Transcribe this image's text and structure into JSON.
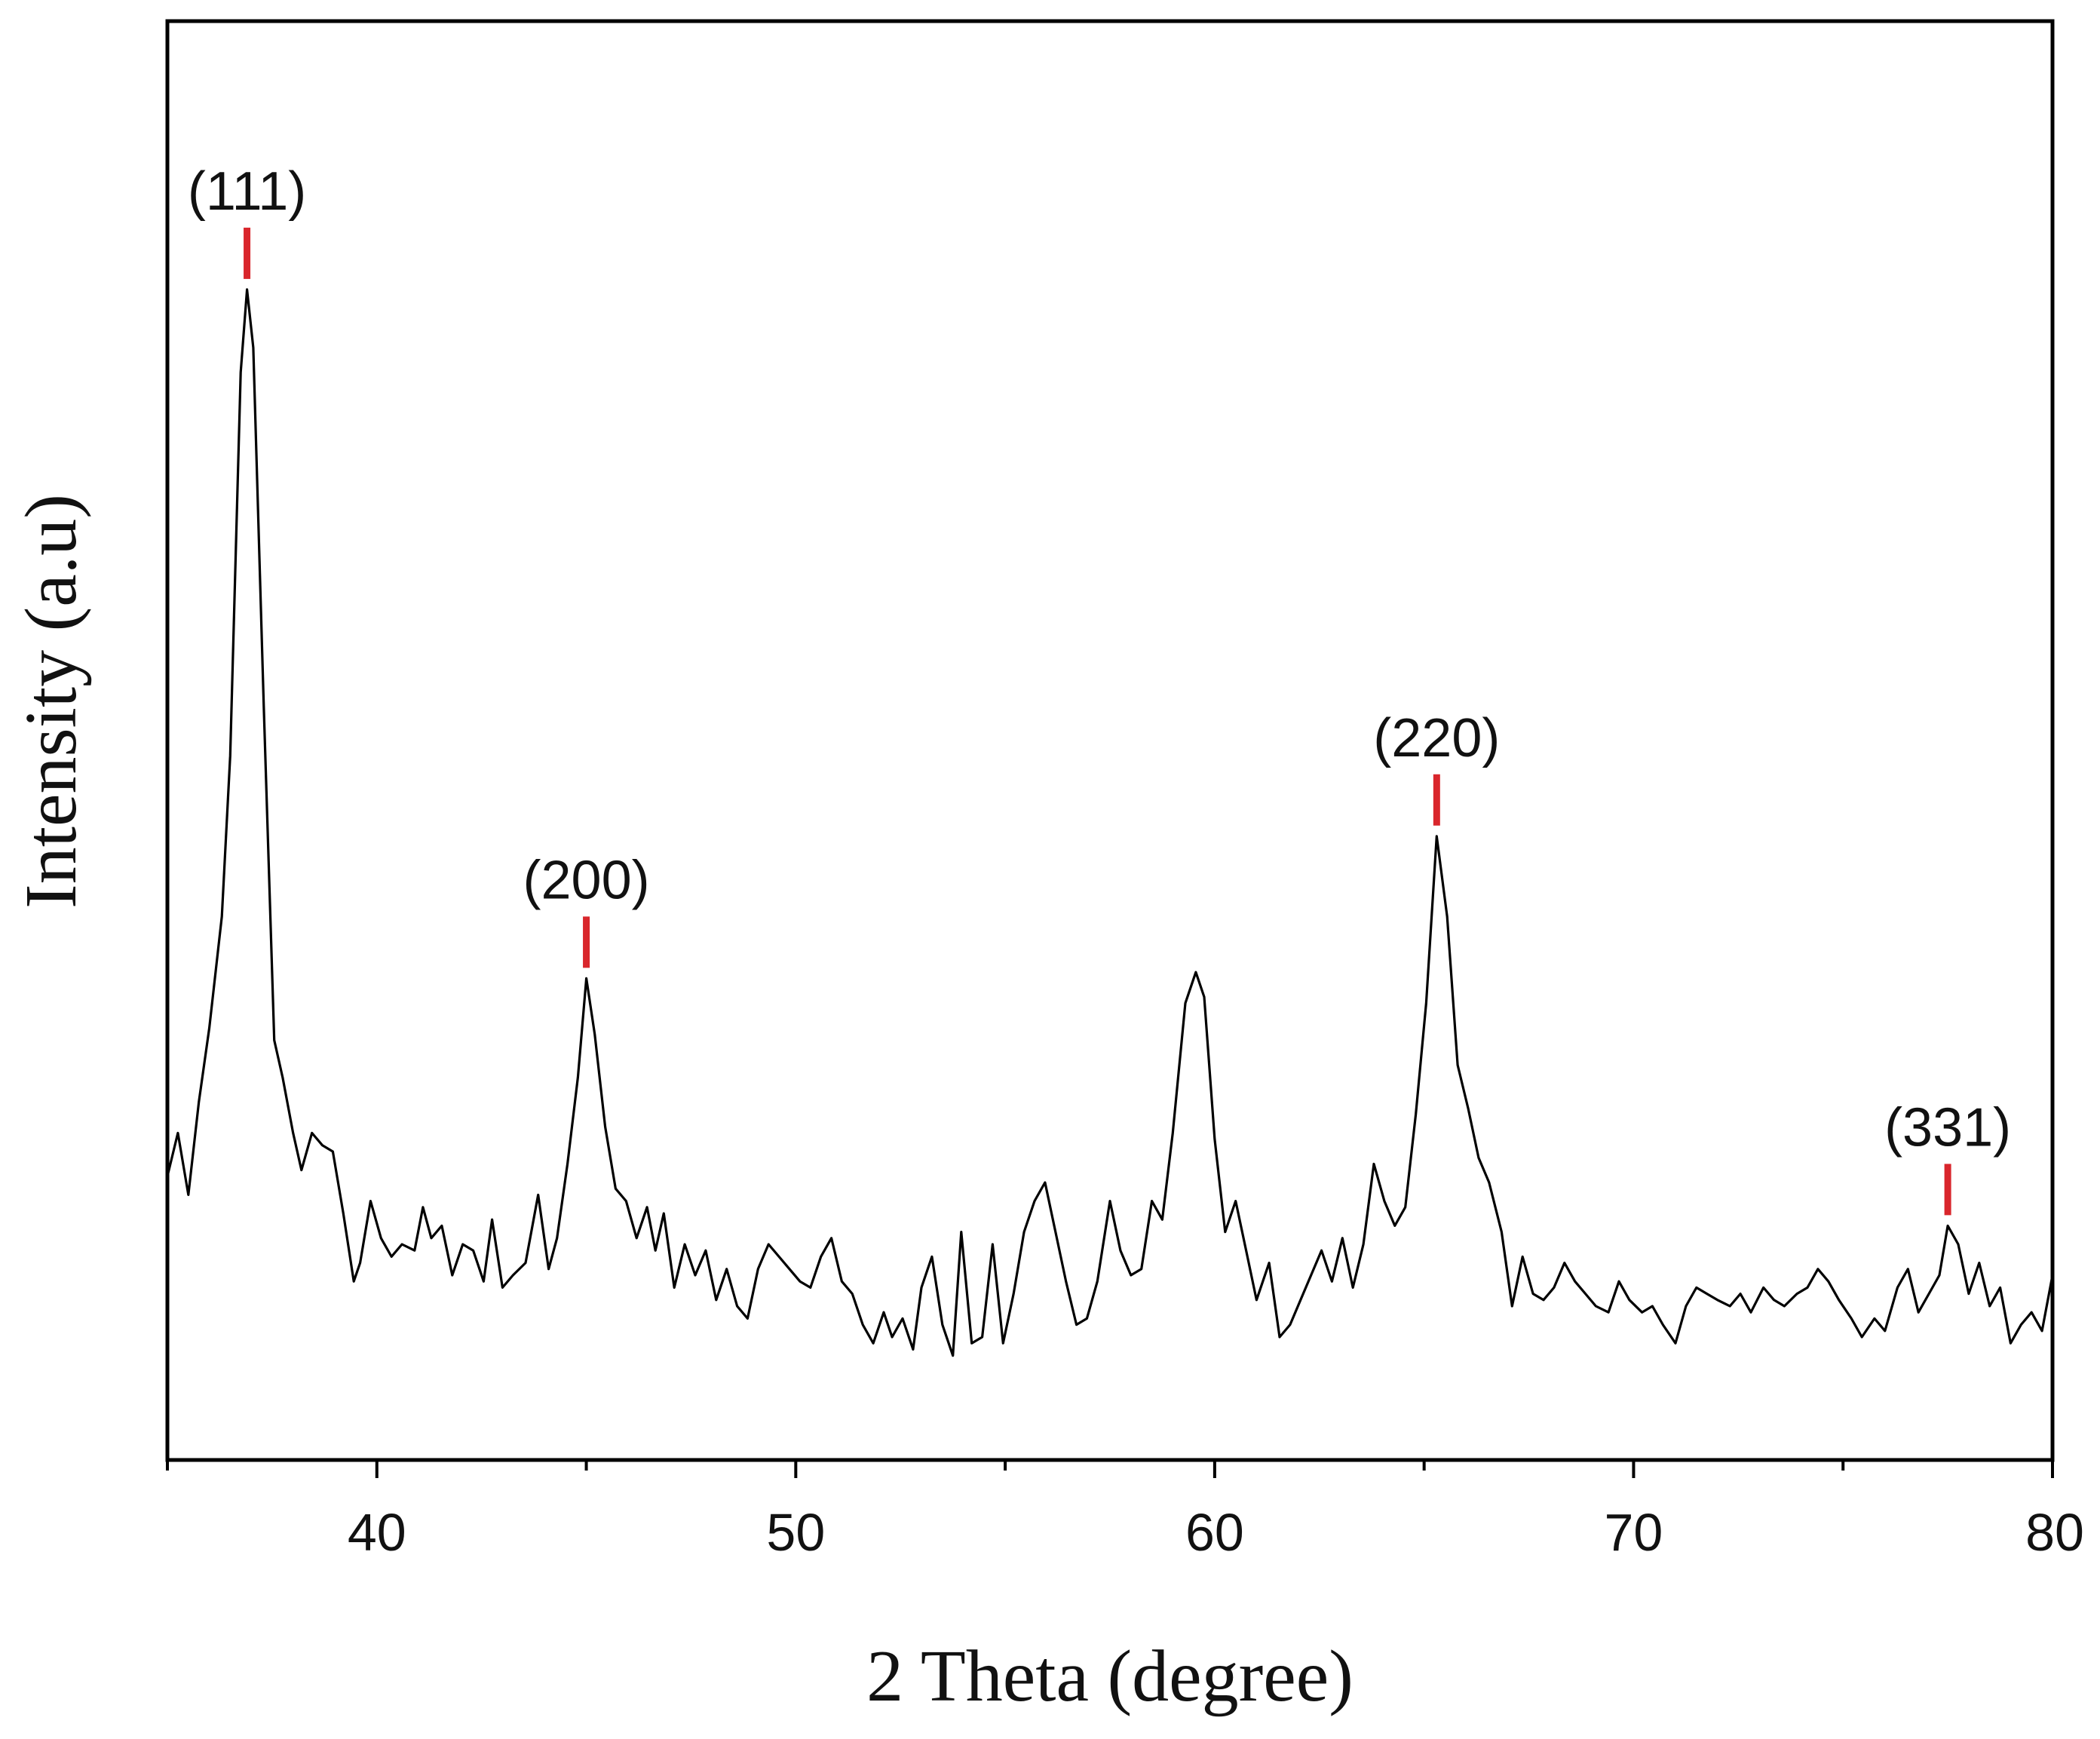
{
  "chart_data": {
    "type": "line",
    "title": "",
    "xlabel": "2 Theta (degree)",
    "ylabel": "Intensity (a.u)",
    "xlim": [
      35,
      80
    ],
    "ylim": [
      0,
      1000
    ],
    "x_ticks": [
      40,
      50,
      60,
      70,
      80
    ],
    "y_ticks": [],
    "grid": false,
    "legend": "none",
    "line_color": "#000000",
    "marker_color": "#d9262c",
    "peak_labels": [
      {
        "label": "(111)",
        "x": 36.9,
        "y": 897
      },
      {
        "label": "(200)",
        "x": 45.0,
        "y": 340
      },
      {
        "label": "(220)",
        "x": 65.3,
        "y": 455
      },
      {
        "label": "(331)",
        "x": 77.5,
        "y": 140
      }
    ],
    "series": [
      {
        "values": [
          [
            35.0,
            180
          ],
          [
            35.25,
            215
          ],
          [
            35.5,
            165
          ],
          [
            35.75,
            240
          ],
          [
            36.0,
            300
          ],
          [
            36.3,
            390
          ],
          [
            36.5,
            520
          ],
          [
            36.75,
            830
          ],
          [
            36.9,
            897
          ],
          [
            37.05,
            850
          ],
          [
            37.3,
            560
          ],
          [
            37.55,
            290
          ],
          [
            37.75,
            260
          ],
          [
            38.0,
            215
          ],
          [
            38.2,
            185
          ],
          [
            38.45,
            215
          ],
          [
            38.7,
            205
          ],
          [
            38.95,
            200
          ],
          [
            39.2,
            150
          ],
          [
            39.45,
            95
          ],
          [
            39.6,
            110
          ],
          [
            39.85,
            160
          ],
          [
            40.1,
            130
          ],
          [
            40.35,
            115
          ],
          [
            40.6,
            125
          ],
          [
            40.9,
            120
          ],
          [
            41.1,
            155
          ],
          [
            41.3,
            130
          ],
          [
            41.55,
            140
          ],
          [
            41.8,
            100
          ],
          [
            42.05,
            125
          ],
          [
            42.3,
            120
          ],
          [
            42.55,
            95
          ],
          [
            42.75,
            145
          ],
          [
            43.0,
            90
          ],
          [
            43.25,
            100
          ],
          [
            43.55,
            110
          ],
          [
            43.85,
            165
          ],
          [
            44.1,
            105
          ],
          [
            44.3,
            130
          ],
          [
            44.55,
            190
          ],
          [
            44.8,
            260
          ],
          [
            45.0,
            340
          ],
          [
            45.2,
            295
          ],
          [
            45.45,
            220
          ],
          [
            45.7,
            170
          ],
          [
            45.95,
            160
          ],
          [
            46.2,
            130
          ],
          [
            46.45,
            155
          ],
          [
            46.65,
            120
          ],
          [
            46.85,
            150
          ],
          [
            47.1,
            90
          ],
          [
            47.35,
            125
          ],
          [
            47.6,
            100
          ],
          [
            47.85,
            120
          ],
          [
            48.1,
            80
          ],
          [
            48.35,
            105
          ],
          [
            48.6,
            75
          ],
          [
            48.85,
            65
          ],
          [
            49.1,
            105
          ],
          [
            49.35,
            125
          ],
          [
            49.6,
            115
          ],
          [
            49.85,
            105
          ],
          [
            50.1,
            95
          ],
          [
            50.35,
            90
          ],
          [
            50.6,
            115
          ],
          [
            50.85,
            130
          ],
          [
            51.1,
            95
          ],
          [
            51.35,
            85
          ],
          [
            51.6,
            60
          ],
          [
            51.85,
            45
          ],
          [
            52.1,
            70
          ],
          [
            52.3,
            50
          ],
          [
            52.55,
            65
          ],
          [
            52.8,
            40
          ],
          [
            53.0,
            90
          ],
          [
            53.25,
            115
          ],
          [
            53.5,
            60
          ],
          [
            53.75,
            35
          ],
          [
            53.95,
            135
          ],
          [
            54.2,
            45
          ],
          [
            54.45,
            50
          ],
          [
            54.7,
            125
          ],
          [
            54.95,
            45
          ],
          [
            55.2,
            85
          ],
          [
            55.45,
            135
          ],
          [
            55.7,
            160
          ],
          [
            55.95,
            175
          ],
          [
            56.2,
            135
          ],
          [
            56.45,
            95
          ],
          [
            56.7,
            60
          ],
          [
            56.95,
            65
          ],
          [
            57.2,
            95
          ],
          [
            57.5,
            160
          ],
          [
            57.75,
            120
          ],
          [
            58.0,
            100
          ],
          [
            58.25,
            105
          ],
          [
            58.5,
            160
          ],
          [
            58.75,
            145
          ],
          [
            59.0,
            215
          ],
          [
            59.3,
            320
          ],
          [
            59.55,
            345
          ],
          [
            59.75,
            325
          ],
          [
            60.0,
            210
          ],
          [
            60.25,
            135
          ],
          [
            60.5,
            160
          ],
          [
            60.75,
            120
          ],
          [
            61.0,
            80
          ],
          [
            61.3,
            110
          ],
          [
            61.55,
            50
          ],
          [
            61.8,
            60
          ],
          [
            62.05,
            80
          ],
          [
            62.3,
            100
          ],
          [
            62.55,
            120
          ],
          [
            62.8,
            95
          ],
          [
            63.05,
            130
          ],
          [
            63.3,
            90
          ],
          [
            63.55,
            125
          ],
          [
            63.8,
            190
          ],
          [
            64.05,
            160
          ],
          [
            64.3,
            140
          ],
          [
            64.55,
            155
          ],
          [
            64.8,
            230
          ],
          [
            65.05,
            320
          ],
          [
            65.3,
            455
          ],
          [
            65.55,
            390
          ],
          [
            65.8,
            270
          ],
          [
            66.05,
            235
          ],
          [
            66.3,
            195
          ],
          [
            66.55,
            175
          ],
          [
            66.85,
            135
          ],
          [
            67.1,
            75
          ],
          [
            67.35,
            115
          ],
          [
            67.6,
            85
          ],
          [
            67.85,
            80
          ],
          [
            68.1,
            90
          ],
          [
            68.35,
            110
          ],
          [
            68.6,
            95
          ],
          [
            68.85,
            85
          ],
          [
            69.1,
            75
          ],
          [
            69.4,
            70
          ],
          [
            69.65,
            95
          ],
          [
            69.9,
            80
          ],
          [
            70.2,
            70
          ],
          [
            70.45,
            75
          ],
          [
            70.7,
            60
          ],
          [
            71.0,
            45
          ],
          [
            71.25,
            75
          ],
          [
            71.5,
            90
          ],
          [
            71.75,
            85
          ],
          [
            72.0,
            80
          ],
          [
            72.3,
            75
          ],
          [
            72.55,
            85
          ],
          [
            72.8,
            70
          ],
          [
            73.1,
            90
          ],
          [
            73.35,
            80
          ],
          [
            73.6,
            75
          ],
          [
            73.9,
            85
          ],
          [
            74.15,
            90
          ],
          [
            74.4,
            105
          ],
          [
            74.65,
            95
          ],
          [
            74.9,
            80
          ],
          [
            75.2,
            65
          ],
          [
            75.45,
            50
          ],
          [
            75.75,
            65
          ],
          [
            76.0,
            55
          ],
          [
            76.3,
            90
          ],
          [
            76.55,
            105
          ],
          [
            76.8,
            70
          ],
          [
            77.05,
            85
          ],
          [
            77.3,
            100
          ],
          [
            77.5,
            140
          ],
          [
            77.75,
            125
          ],
          [
            78.0,
            85
          ],
          [
            78.25,
            110
          ],
          [
            78.5,
            75
          ],
          [
            78.75,
            90
          ],
          [
            79.0,
            45
          ],
          [
            79.25,
            60
          ],
          [
            79.5,
            70
          ],
          [
            79.75,
            55
          ],
          [
            80.0,
            100
          ]
        ]
      }
    ]
  }
}
